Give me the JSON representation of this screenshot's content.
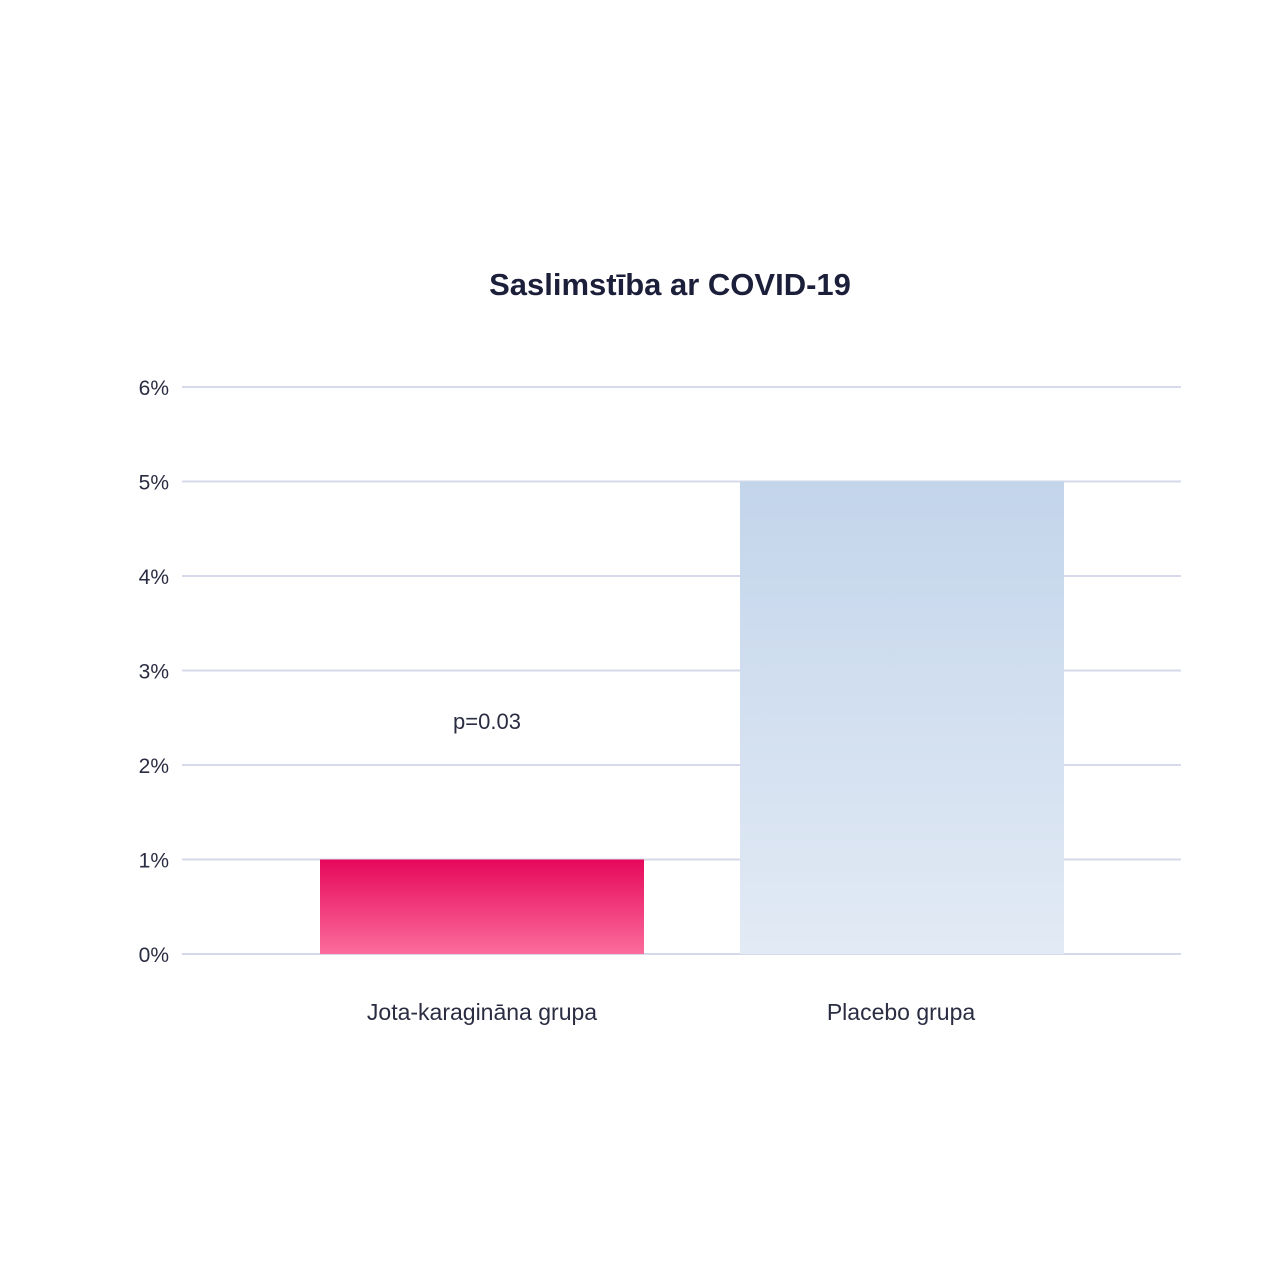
{
  "chart_data": {
    "type": "bar",
    "title": "Saslimstība ar COVID-19",
    "xlabel": "",
    "ylabel": "",
    "categories": [
      "Jota-karagināna grupa",
      "Placebo grupa"
    ],
    "values": [
      1,
      5
    ],
    "ylim": [
      0,
      6
    ],
    "yticks": [
      0,
      1,
      2,
      3,
      4,
      5,
      6
    ],
    "ytick_labels": [
      "0%",
      "1%",
      "2%",
      "3%",
      "4%",
      "5%",
      "6%"
    ],
    "grid": true,
    "annotation": "p=0.03",
    "colors": {
      "jota_top": "#e6085a",
      "jota_bottom": "#fb6c9c",
      "placebo_top": "#c3d5eb",
      "placebo_bottom": "#e2eaf5",
      "grid": "#d6d9ea",
      "title": "#1c1f3a",
      "text": "#2a2d42"
    }
  }
}
